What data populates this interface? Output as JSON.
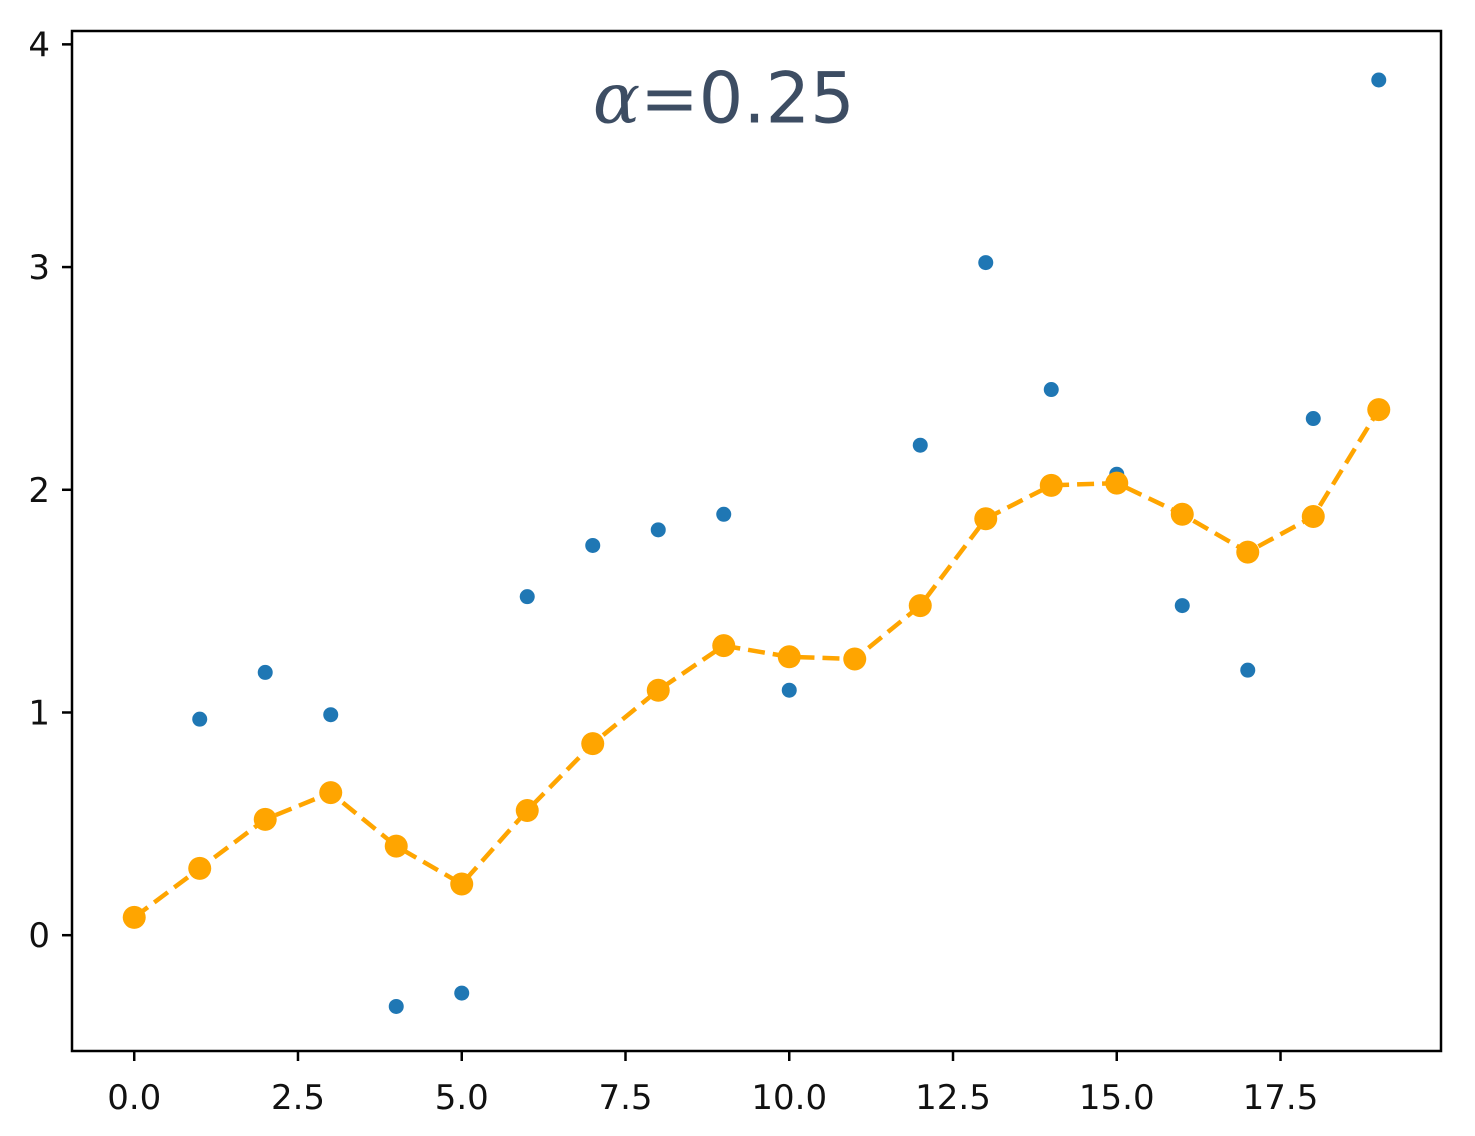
{
  "chart_data": {
    "type": "scatter",
    "xlim": [
      -0.95,
      19.95
    ],
    "ylim": [
      -0.52,
      4.06
    ],
    "x_ticks": [
      0.0,
      2.5,
      5.0,
      7.5,
      10.0,
      12.5,
      15.0,
      17.5
    ],
    "x_tick_labels": [
      "0.0",
      "2.5",
      "5.0",
      "7.5",
      "10.0",
      "12.5",
      "15.0",
      "17.5"
    ],
    "y_ticks": [
      0,
      1,
      2,
      3,
      4
    ],
    "y_tick_labels": [
      "0",
      "1",
      "2",
      "3",
      "4"
    ],
    "grid": false,
    "annotation": {
      "symbol": "α",
      "text": "=0.25",
      "x": 9.0,
      "y": 3.65,
      "color": "#3d4d63"
    },
    "series": [
      {
        "style": "scatter",
        "color": "#1f77b4",
        "x": [
          0,
          1,
          2,
          3,
          4,
          5,
          6,
          7,
          8,
          9,
          10,
          11,
          12,
          13,
          14,
          15,
          16,
          17,
          18,
          19
        ],
        "y": [
          0.08,
          0.97,
          1.18,
          0.99,
          -0.32,
          -0.26,
          1.52,
          1.75,
          1.82,
          1.89,
          1.1,
          1.24,
          2.2,
          3.02,
          2.45,
          2.07,
          1.48,
          1.19,
          2.32,
          3.84
        ]
      },
      {
        "style": "dashed-line-markers",
        "color": "#ffa500",
        "x": [
          0,
          1,
          2,
          3,
          4,
          5,
          6,
          7,
          8,
          9,
          10,
          11,
          12,
          13,
          14,
          15,
          16,
          17,
          18,
          19
        ],
        "y": [
          0.08,
          0.3,
          0.52,
          0.64,
          0.4,
          0.23,
          0.56,
          0.86,
          1.1,
          1.3,
          1.25,
          1.24,
          1.48,
          1.87,
          2.02,
          2.03,
          1.89,
          1.72,
          1.88,
          2.36
        ]
      }
    ]
  }
}
